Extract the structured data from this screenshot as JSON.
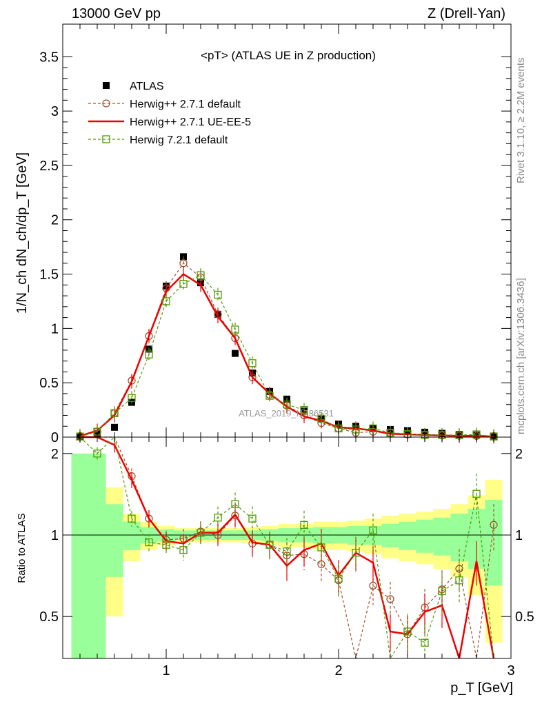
{
  "header": {
    "left": "13000 GeV pp",
    "right": "Z (Drell-Yan)"
  },
  "side_texts": {
    "rivet": "Rivet 3.1.10, ≥ 2.2M events",
    "mcplots": "mcplots.cern.ch [arXiv:1306.3436]"
  },
  "chart_data": {
    "type": "line",
    "title": "<pT> (ATLAS UE in Z production)",
    "watermark": "ATLAS_2019_I1736531",
    "xlabel": "p_T [GeV]",
    "ylabel": "1/N_ch dN_ch/dp_T [GeV]",
    "ratio_ylabel": "Ratio to ATLAS",
    "xlim": [
      0.4,
      3.0
    ],
    "ylim": [
      0,
      3.8
    ],
    "ratio_ylim": [
      0.35,
      2.3
    ],
    "x_ticks": [
      1,
      2,
      3
    ],
    "y_ticks": [
      0,
      0.5,
      1,
      1.5,
      2,
      2.5,
      3,
      3.5
    ],
    "y_tick_labels": [
      "0",
      "0.5",
      "1",
      "1.5",
      "2",
      "2.5",
      "3",
      "3.5"
    ],
    "ratio_ticks": [
      0.5,
      1,
      2
    ],
    "ratio_tick_labels": [
      "0.5",
      "1",
      "2"
    ],
    "x": [
      0.5,
      0.6,
      0.7,
      0.8,
      0.9,
      1.0,
      1.1,
      1.2,
      1.3,
      1.4,
      1.5,
      1.6,
      1.7,
      1.8,
      1.9,
      2.0,
      2.1,
      2.2,
      2.3,
      2.4,
      2.5,
      2.6,
      2.7,
      2.8,
      2.9
    ],
    "legend": [
      "ATLAS",
      "Herwig++ 2.7.1 default",
      "Herwig++ 2.7.1 UE-EE-5",
      "Herwig 7.2.1 default"
    ],
    "series": [
      {
        "name": "ATLAS",
        "style": "data",
        "color": "#000000",
        "values": [
          0.005,
          0.03,
          0.09,
          0.32,
          0.81,
          1.39,
          1.66,
          1.42,
          1.13,
          0.77,
          0.59,
          0.42,
          0.35,
          0.24,
          0.17,
          0.12,
          0.1,
          0.08,
          0.07,
          0.06,
          0.045,
          0.035,
          0.025,
          0.018,
          0.01
        ]
      },
      {
        "name": "Herwig++ 2.7.1 default",
        "style": "dashed-circle",
        "color": "#a0522d",
        "values": [
          0.01,
          0.05,
          0.22,
          0.52,
          0.93,
          1.37,
          1.6,
          1.47,
          1.13,
          0.91,
          0.55,
          0.39,
          0.29,
          0.2,
          0.13,
          0.08,
          0.04,
          0.05,
          0.04,
          0.025,
          0.02,
          0.015,
          0.012,
          0.01,
          0.009
        ],
        "ratio": [
          2.3,
          2.3,
          2.3,
          1.65,
          1.15,
          0.96,
          0.97,
          1.03,
          1.0,
          1.18,
          0.93,
          0.92,
          0.84,
          0.85,
          0.78,
          0.68,
          0.3,
          0.65,
          0.58,
          0.43,
          0.54,
          0.63,
          0.75,
          0.3,
          1.09
        ]
      },
      {
        "name": "Herwig++ 2.7.1 UE-EE-5",
        "style": "solid",
        "color": "#ee0000",
        "values": [
          0.01,
          0.06,
          0.2,
          0.51,
          0.93,
          1.34,
          1.5,
          1.4,
          1.11,
          0.91,
          0.55,
          0.4,
          0.28,
          0.19,
          0.15,
          0.09,
          0.08,
          0.06,
          0.03,
          0.025,
          0.02,
          0.015,
          0.01,
          0.012,
          0.005
        ],
        "ratio": [
          2.3,
          2.3,
          2.15,
          1.6,
          1.15,
          0.95,
          0.93,
          1.02,
          1.02,
          1.19,
          0.94,
          0.92,
          0.77,
          0.88,
          0.93,
          0.71,
          0.86,
          0.79,
          0.44,
          0.43,
          0.52,
          0.55,
          0.3,
          0.8,
          0.3
        ]
      },
      {
        "name": "Herwig 7.2.1 default",
        "style": "dashed-square",
        "color": "#4f9a00",
        "values": [
          0.005,
          0.05,
          0.22,
          0.36,
          0.76,
          1.25,
          1.41,
          1.49,
          1.31,
          0.99,
          0.68,
          0.38,
          0.3,
          0.25,
          0.17,
          0.08,
          0.07,
          0.08,
          0.04,
          0.03,
          0.02,
          0.02,
          0.018,
          0.025,
          0.005
        ],
        "ratio": [
          2.3,
          2.0,
          2.3,
          1.15,
          0.94,
          0.92,
          0.88,
          1.02,
          1.16,
          1.3,
          1.15,
          0.92,
          0.87,
          1.09,
          0.9,
          0.69,
          0.86,
          1.04,
          0.3,
          0.44,
          0.4,
          0.62,
          0.68,
          1.42,
          0.3
        ]
      }
    ],
    "bands": {
      "x_edges": [
        0.45,
        0.55,
        0.65,
        0.75,
        0.85,
        0.95,
        1.05,
        1.15,
        1.25,
        1.35,
        1.45,
        1.55,
        1.65,
        1.75,
        1.85,
        1.95,
        2.05,
        2.15,
        2.25,
        2.35,
        2.45,
        2.55,
        2.65,
        2.75,
        2.85,
        2.95
      ],
      "green_half": [
        1.0,
        1.0,
        0.3,
        0.12,
        0.07,
        0.05,
        0.04,
        0.04,
        0.04,
        0.04,
        0.04,
        0.05,
        0.06,
        0.06,
        0.07,
        0.07,
        0.08,
        0.08,
        0.1,
        0.12,
        0.14,
        0.16,
        0.2,
        0.25,
        0.35
      ],
      "yellow_half": [
        1.0,
        1.0,
        0.5,
        0.2,
        0.12,
        0.08,
        0.06,
        0.06,
        0.06,
        0.06,
        0.07,
        0.08,
        0.1,
        0.1,
        0.12,
        0.12,
        0.13,
        0.15,
        0.18,
        0.2,
        0.22,
        0.25,
        0.3,
        0.4,
        0.6
      ]
    }
  }
}
